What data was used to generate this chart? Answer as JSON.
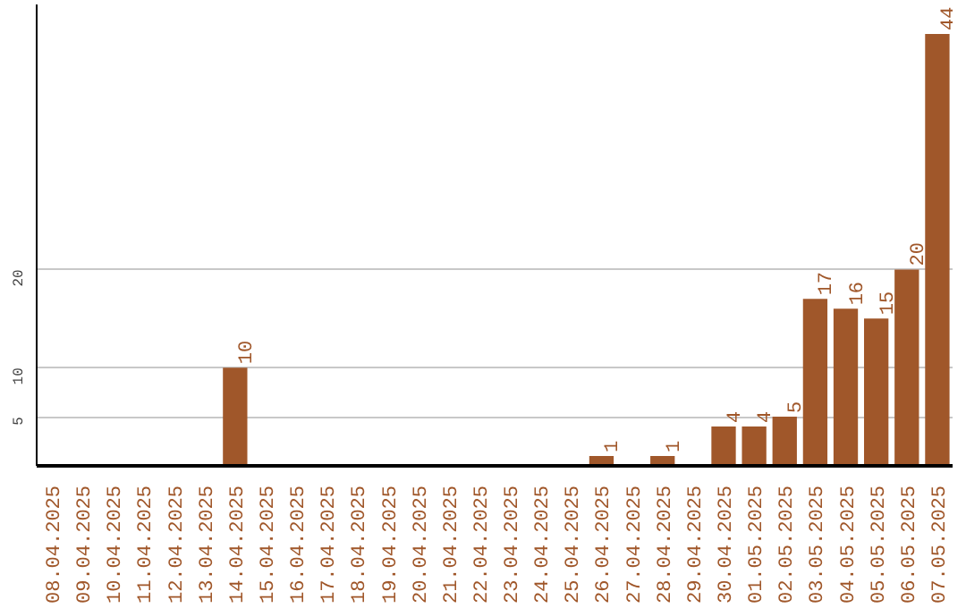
{
  "chart_data": {
    "type": "bar",
    "categories": [
      "08.04.2025",
      "09.04.2025",
      "10.04.2025",
      "11.04.2025",
      "12.04.2025",
      "13.04.2025",
      "14.04.2025",
      "15.04.2025",
      "16.04.2025",
      "17.04.2025",
      "18.04.2025",
      "19.04.2025",
      "20.04.2025",
      "21.04.2025",
      "22.04.2025",
      "23.04.2025",
      "24.04.2025",
      "25.04.2025",
      "26.04.2025",
      "27.04.2025",
      "28.04.2025",
      "29.04.2025",
      "30.04.2025",
      "01.05.2025",
      "02.05.2025",
      "03.05.2025",
      "04.05.2025",
      "05.05.2025",
      "06.05.2025",
      "07.05.2025"
    ],
    "values": [
      0,
      0,
      0,
      0,
      0,
      0,
      10,
      0,
      0,
      0,
      0,
      0,
      0,
      0,
      0,
      0,
      0,
      0,
      1,
      0,
      1,
      0,
      4,
      4,
      5,
      17,
      16,
      15,
      20,
      44
    ],
    "value_labels": [
      null,
      null,
      null,
      null,
      null,
      null,
      "10",
      null,
      null,
      null,
      null,
      null,
      null,
      null,
      null,
      null,
      null,
      null,
      "1",
      null,
      "1",
      null,
      "4",
      "4",
      "5",
      "17",
      "16",
      "15",
      "20",
      "44"
    ],
    "color": "#a0572a",
    "ylim": [
      0,
      47
    ],
    "yticks": [
      5,
      10,
      20
    ],
    "grid": "y"
  }
}
